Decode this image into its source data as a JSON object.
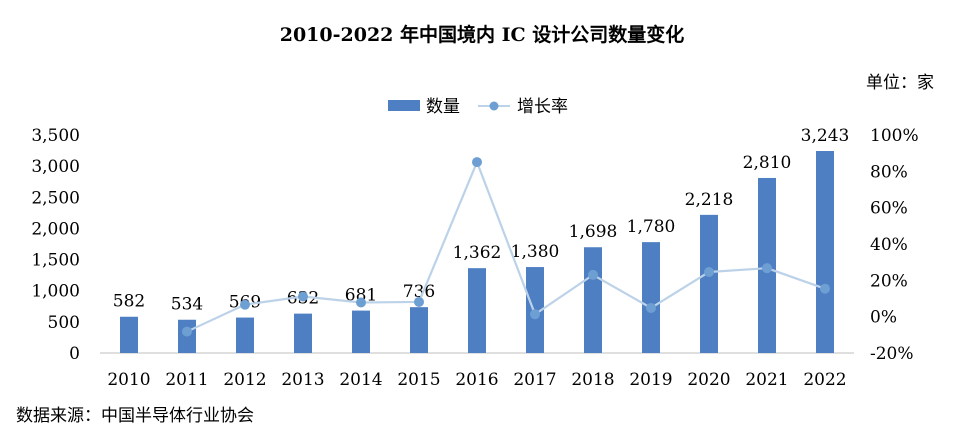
{
  "title": "2010-2022 年中国境内 IC 设计公司数量变化",
  "unit_label": "单位：家",
  "source": "数据来源：中国半导体行业协会",
  "chart_data": {
    "type": "bar",
    "categories": [
      "2010",
      "2011",
      "2012",
      "2013",
      "2014",
      "2015",
      "2016",
      "2017",
      "2018",
      "2019",
      "2020",
      "2021",
      "2022"
    ],
    "series": [
      {
        "name": "数量",
        "type": "bar",
        "axis": "left",
        "color": "#4E7FC3",
        "values": [
          582,
          534,
          569,
          632,
          681,
          736,
          1362,
          1380,
          1698,
          1780,
          2218,
          2810,
          3243
        ],
        "labels": [
          "582",
          "534",
          "569",
          "632",
          "681",
          "736",
          "1,362",
          "1,380",
          "1,698",
          "1,780",
          "2,218",
          "2,810",
          "3,243"
        ]
      },
      {
        "name": "增长率",
        "type": "line",
        "axis": "right",
        "color": "#BCD2E8",
        "marker_color": "#6E9FD2",
        "values": [
          null,
          -8.2,
          6.6,
          11.1,
          7.8,
          8.1,
          85.1,
          1.3,
          23.0,
          4.8,
          24.6,
          26.7,
          15.4
        ]
      }
    ],
    "y_left": {
      "ylim": [
        0,
        3500
      ],
      "ticks": [
        "0",
        "500",
        "1,000",
        "1,500",
        "2,000",
        "2,500",
        "3,000",
        "3,500"
      ]
    },
    "y_right": {
      "ylim": [
        -20,
        100
      ],
      "ticks": [
        "-20%",
        "0%",
        "20%",
        "40%",
        "60%",
        "80%",
        "100%"
      ]
    },
    "grid": false,
    "legend_position": "top-center"
  }
}
